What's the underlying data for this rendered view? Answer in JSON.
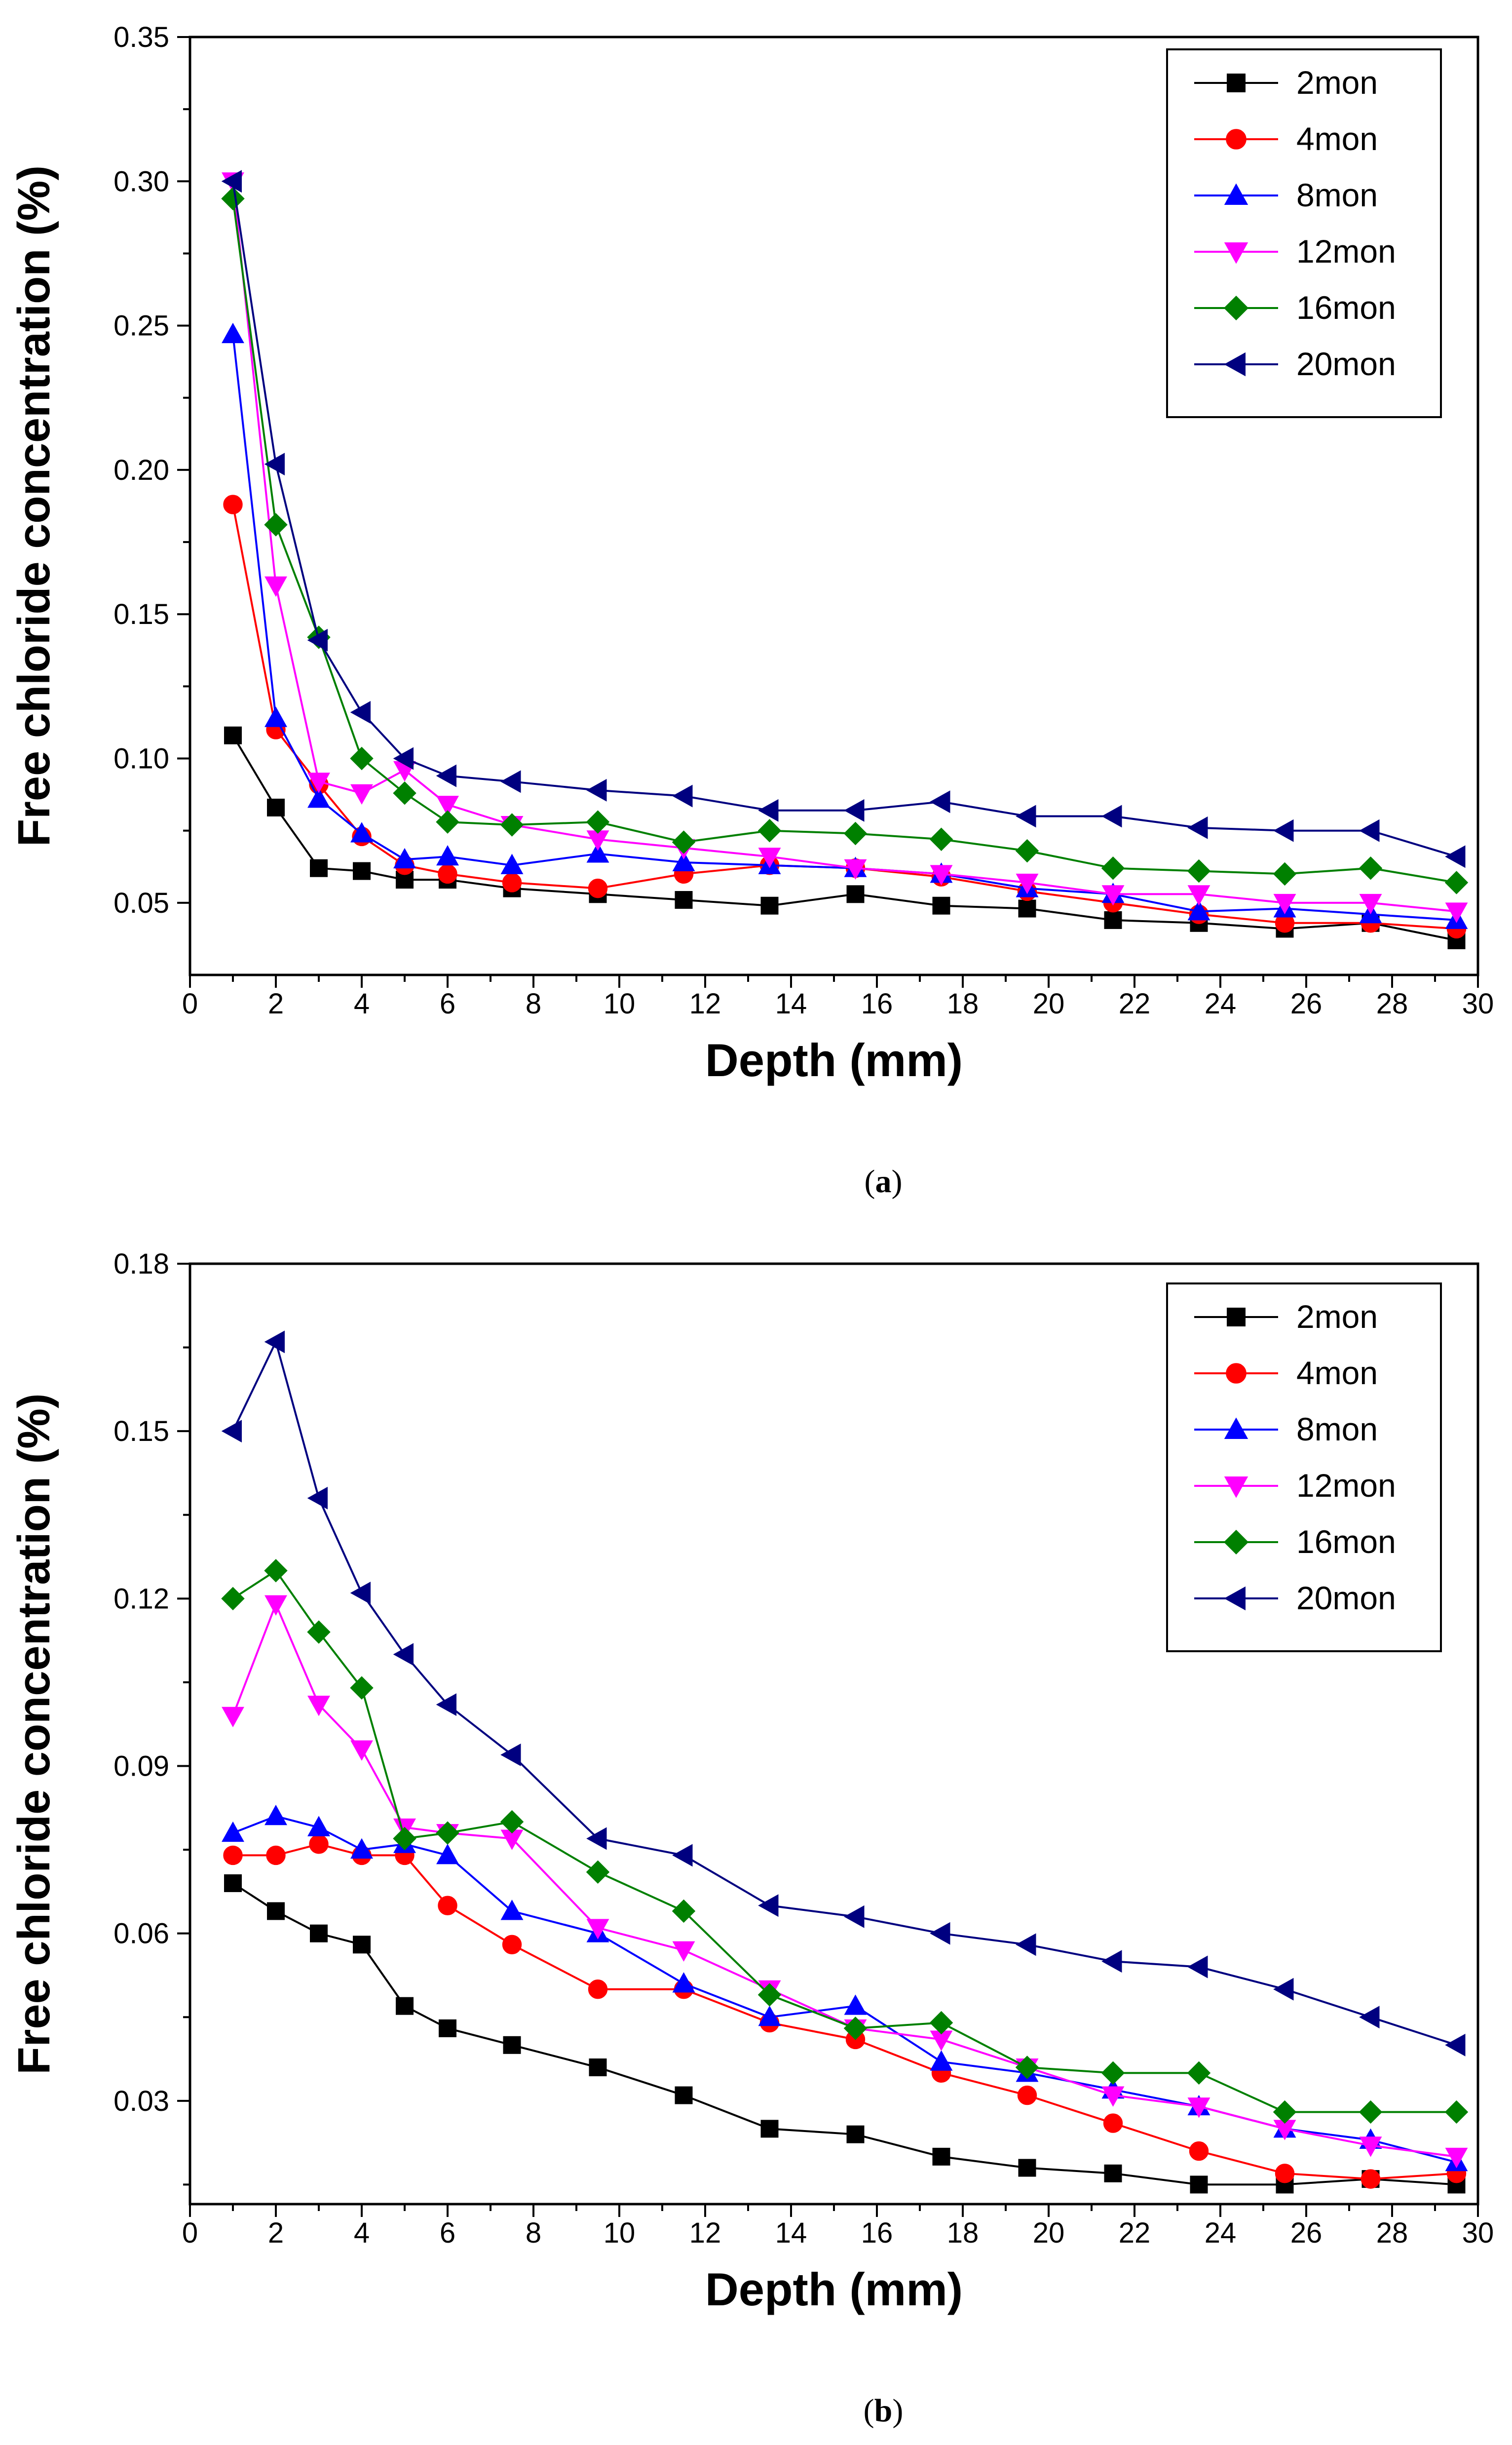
{
  "chart_data": [
    {
      "type": "line",
      "panel": "a",
      "caption": "(a)",
      "caption_parts": [
        "(",
        "a",
        ")"
      ],
      "xlabel": "Depth (mm)",
      "ylabel": "Free chloride concentration (%)",
      "xlim": [
        0,
        30
      ],
      "ylim": [
        0.025,
        0.35
      ],
      "xticks": [
        0,
        2,
        4,
        6,
        8,
        10,
        12,
        14,
        16,
        18,
        20,
        22,
        24,
        26,
        28,
        30
      ],
      "yticks": [
        0.05,
        0.1,
        0.15,
        0.2,
        0.25,
        0.3,
        0.35
      ],
      "ytick_labels": [
        "0.05",
        "0.10",
        "0.15",
        "0.20",
        "0.25",
        "0.30",
        "0.35"
      ],
      "legend_position": "top-right",
      "x": [
        1,
        2,
        3,
        4,
        5,
        6,
        7.5,
        9.5,
        11.5,
        13.5,
        15.5,
        17.5,
        19.5,
        21.5,
        23.5,
        25.5,
        27.5,
        29.5
      ],
      "series": [
        {
          "name": "2mon",
          "color": "#000000",
          "marker": "square",
          "values": [
            0.108,
            0.083,
            0.062,
            0.061,
            0.058,
            0.058,
            0.055,
            0.053,
            0.051,
            0.049,
            0.053,
            0.049,
            0.048,
            0.044,
            0.043,
            0.041,
            0.043,
            0.037
          ]
        },
        {
          "name": "4mon",
          "color": "#ff0000",
          "marker": "circle",
          "values": [
            0.188,
            0.11,
            0.091,
            0.073,
            0.063,
            0.06,
            0.057,
            0.055,
            0.06,
            0.063,
            0.062,
            0.059,
            0.054,
            0.05,
            0.046,
            0.043,
            0.043,
            0.041
          ]
        },
        {
          "name": "8mon",
          "color": "#0000ff",
          "marker": "triangle-up",
          "values": [
            0.247,
            0.114,
            0.086,
            0.074,
            0.065,
            0.066,
            0.063,
            0.067,
            0.064,
            0.063,
            0.062,
            0.06,
            0.055,
            0.053,
            0.047,
            0.048,
            0.046,
            0.044
          ]
        },
        {
          "name": "12mon",
          "color": "#ff00ff",
          "marker": "triangle-down",
          "values": [
            0.3,
            0.16,
            0.092,
            0.088,
            0.096,
            0.084,
            0.077,
            0.072,
            0.069,
            0.066,
            0.062,
            0.06,
            0.057,
            0.053,
            0.053,
            0.05,
            0.05,
            0.047
          ]
        },
        {
          "name": "16mon",
          "color": "#008000",
          "marker": "diamond",
          "values": [
            0.294,
            0.181,
            0.142,
            0.1,
            0.088,
            0.078,
            0.077,
            0.078,
            0.071,
            0.075,
            0.074,
            0.072,
            0.068,
            0.062,
            0.061,
            0.06,
            0.062,
            0.057
          ]
        },
        {
          "name": "20mon",
          "color": "#000080",
          "marker": "triangle-left",
          "values": [
            0.3,
            0.202,
            0.141,
            0.116,
            0.1,
            0.094,
            0.092,
            0.089,
            0.087,
            0.082,
            0.082,
            0.085,
            0.08,
            0.08,
            0.076,
            0.075,
            0.075,
            0.066
          ]
        }
      ]
    },
    {
      "type": "line",
      "panel": "b",
      "caption": "(b)",
      "caption_parts": [
        "(",
        "b",
        ")"
      ],
      "xlabel": "Depth (mm)",
      "ylabel": "Free chloride concentration (%)",
      "xlim": [
        0,
        30
      ],
      "ylim": [
        0.0115,
        0.18
      ],
      "xticks": [
        0,
        2,
        4,
        6,
        8,
        10,
        12,
        14,
        16,
        18,
        20,
        22,
        24,
        26,
        28,
        30
      ],
      "yticks": [
        0.03,
        0.06,
        0.09,
        0.12,
        0.15,
        0.18
      ],
      "ytick_labels": [
        "0.03",
        "0.06",
        "0.09",
        "0.12",
        "0.15",
        "0.18"
      ],
      "legend_position": "top-right",
      "x": [
        1,
        2,
        3,
        4,
        5,
        6,
        7.5,
        9.5,
        11.5,
        13.5,
        15.5,
        17.5,
        19.5,
        21.5,
        23.5,
        25.5,
        27.5,
        29.5
      ],
      "series": [
        {
          "name": "2mon",
          "color": "#000000",
          "marker": "square",
          "values": [
            0.069,
            0.064,
            0.06,
            0.058,
            0.047,
            0.043,
            0.04,
            0.036,
            0.031,
            0.025,
            0.024,
            0.02,
            0.018,
            0.017,
            0.015,
            0.015,
            0.016,
            0.015
          ]
        },
        {
          "name": "4mon",
          "color": "#ff0000",
          "marker": "circle",
          "values": [
            0.074,
            0.074,
            0.076,
            0.074,
            0.074,
            0.065,
            0.058,
            0.05,
            0.05,
            0.044,
            0.041,
            0.035,
            0.031,
            0.026,
            0.021,
            0.017,
            0.016,
            0.017
          ]
        },
        {
          "name": "8mon",
          "color": "#0000ff",
          "marker": "triangle-up",
          "values": [
            0.078,
            0.081,
            0.079,
            0.075,
            0.076,
            0.074,
            0.064,
            0.06,
            0.051,
            0.045,
            0.047,
            0.037,
            0.035,
            0.032,
            0.029,
            0.025,
            0.023,
            0.019
          ]
        },
        {
          "name": "12mon",
          "color": "#ff00ff",
          "marker": "triangle-down",
          "values": [
            0.099,
            0.119,
            0.101,
            0.093,
            0.079,
            0.078,
            0.077,
            0.061,
            0.057,
            0.05,
            0.043,
            0.041,
            0.036,
            0.031,
            0.029,
            0.025,
            0.022,
            0.02
          ]
        },
        {
          "name": "16mon",
          "color": "#008000",
          "marker": "diamond",
          "values": [
            0.12,
            0.125,
            0.114,
            0.104,
            0.077,
            0.078,
            0.08,
            0.071,
            0.064,
            0.049,
            0.043,
            0.044,
            0.036,
            0.035,
            0.035,
            0.028,
            0.028,
            0.028
          ]
        },
        {
          "name": "20mon",
          "color": "#000080",
          "marker": "triangle-left",
          "values": [
            0.15,
            0.166,
            0.138,
            0.121,
            0.11,
            0.101,
            0.092,
            0.077,
            0.074,
            0.065,
            0.063,
            0.06,
            0.058,
            0.055,
            0.054,
            0.05,
            0.045,
            0.04
          ]
        }
      ]
    }
  ]
}
